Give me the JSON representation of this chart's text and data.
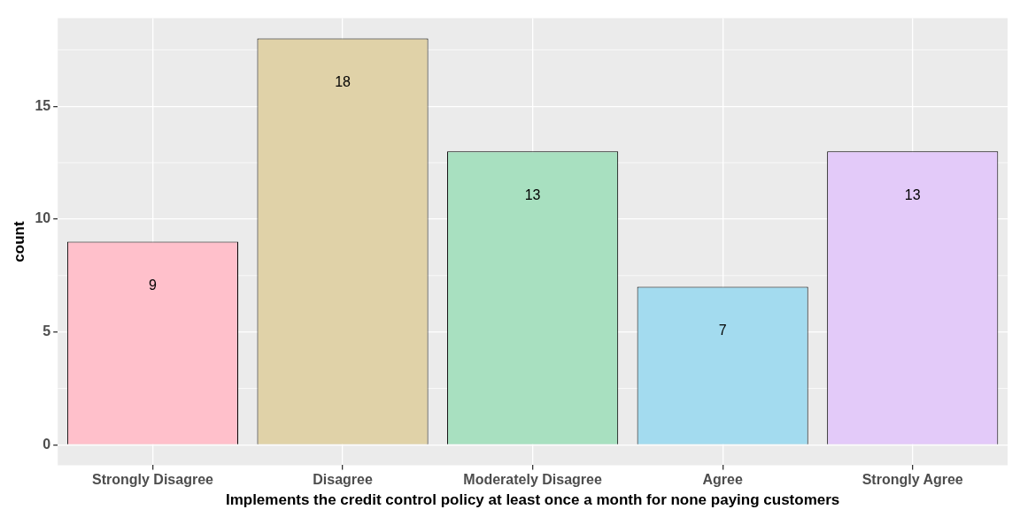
{
  "chart_data": {
    "type": "bar",
    "xlabel": "Implements the credit control policy at least once a month for none paying customers",
    "ylabel": "count",
    "categories": [
      "Strongly Disagree",
      "Disagree",
      "Moderately Disagree",
      "Agree",
      "Strongly Agree"
    ],
    "values": [
      9,
      18,
      13,
      7,
      13
    ],
    "colors": [
      "#ffc0cb",
      "#e0d2a8",
      "#a8e0c0",
      "#a3dbef",
      "#e3caf9"
    ],
    "ylim": [
      -0.9,
      18.9
    ],
    "yticks": [
      0,
      5,
      10,
      15
    ],
    "grid": true,
    "data_labels": true,
    "legend": false
  }
}
